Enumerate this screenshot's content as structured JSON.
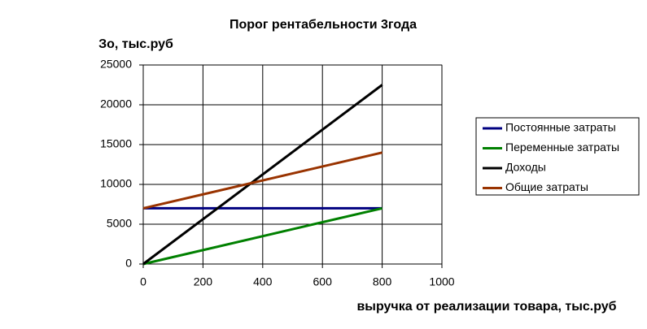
{
  "chart_data": {
    "type": "line",
    "title": "Порог рентабельности 3года",
    "y_label": "Зо, тыс.руб",
    "x_label": "выручка от реализации товара, тыс.руб",
    "x": [
      0,
      800
    ],
    "series": [
      {
        "name": "Постоянные затраты",
        "color": "#000080",
        "values": [
          7000,
          7000
        ]
      },
      {
        "name": "Переменные затраты",
        "color": "#008000",
        "values": [
          0,
          7000
        ]
      },
      {
        "name": "Доходы",
        "color": "#000000",
        "values": [
          0,
          22500
        ]
      },
      {
        "name": "Общие затраты",
        "color": "#993300",
        "values": [
          7000,
          14000
        ]
      }
    ],
    "xlim": [
      0,
      1000
    ],
    "xticks": [
      0,
      200,
      400,
      600,
      800,
      1000
    ],
    "ylim": [
      0,
      25000
    ],
    "yticks": [
      0,
      5000,
      10000,
      15000,
      20000,
      25000
    ],
    "grid": true,
    "legend": "right"
  }
}
